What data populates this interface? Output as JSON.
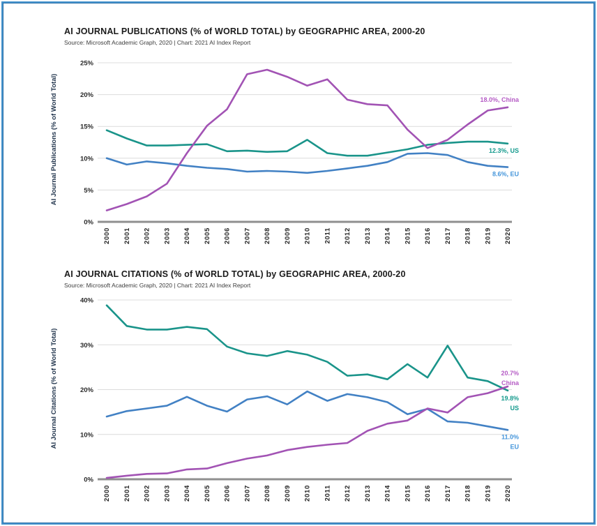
{
  "page": {
    "frame_color": "#4593cd"
  },
  "chart_data": [
    {
      "type": "line",
      "title": "AI JOURNAL PUBLICATIONS (% of WORLD TOTAL) by GEOGRAPHIC AREA, 2000-20",
      "source": "Source: Microsoft Academic Graph, 2020 | Chart: 2021 AI Index Report",
      "xlabel": "",
      "ylabel": "AI Journal Publications (% of World Total)",
      "grid": true,
      "legend_position": "end-of-line-labels-right",
      "ylim": [
        0,
        25
      ],
      "ytick_values": [
        0,
        5,
        10,
        15,
        20,
        25
      ],
      "x": [
        2000,
        2001,
        2002,
        2003,
        2004,
        2005,
        2006,
        2007,
        2008,
        2009,
        2010,
        2011,
        2012,
        2013,
        2014,
        2015,
        2016,
        2017,
        2018,
        2019,
        2020
      ],
      "series": [
        {
          "name": "China",
          "color": "#a253b4",
          "label_color": "#b55cc5",
          "end_label_lines": [
            "18.0%, China"
          ],
          "values": [
            1.8,
            2.8,
            4.0,
            6.0,
            10.8,
            15.1,
            17.7,
            23.2,
            23.9,
            22.8,
            21.4,
            22.4,
            19.2,
            18.5,
            18.3,
            14.5,
            11.6,
            12.9,
            15.3,
            17.5,
            18.0
          ]
        },
        {
          "name": "US",
          "color": "#1a948a",
          "label_color": "#149a8d",
          "end_label_lines": [
            "12.3%, US"
          ],
          "values": [
            14.4,
            13.1,
            12.0,
            12.0,
            12.1,
            12.2,
            11.1,
            11.2,
            11.0,
            11.1,
            12.9,
            10.8,
            10.4,
            10.4,
            10.9,
            11.4,
            12.1,
            12.4,
            12.6,
            12.6,
            12.3
          ]
        },
        {
          "name": "EU",
          "color": "#4281c4",
          "label_color": "#4596db",
          "end_label_lines": [
            "8.6%, EU"
          ],
          "values": [
            10.0,
            9.0,
            9.5,
            9.2,
            8.8,
            8.5,
            8.3,
            7.9,
            8.0,
            7.9,
            7.7,
            8.0,
            8.4,
            8.8,
            9.4,
            10.7,
            10.8,
            10.5,
            9.4,
            8.8,
            8.6
          ]
        }
      ]
    },
    {
      "type": "line",
      "title": "AI JOURNAL CITATIONS (% of WORLD TOTAL) by GEOGRAPHIC AREA, 2000-20",
      "source": "Source: Microsoft Academic Graph, 2020 | Chart: 2021 AI Index Report",
      "xlabel": "",
      "ylabel": "AI Journal Citations (% of World Total)",
      "grid": true,
      "legend_position": "end-of-line-labels-right",
      "ylim": [
        0,
        40
      ],
      "ytick_values": [
        0,
        10,
        20,
        30,
        40
      ],
      "x": [
        2000,
        2001,
        2002,
        2003,
        2004,
        2005,
        2006,
        2007,
        2008,
        2009,
        2010,
        2011,
        2012,
        2013,
        2014,
        2015,
        2016,
        2017,
        2018,
        2019,
        2020
      ],
      "series": [
        {
          "name": "China",
          "color": "#a253b4",
          "label_color": "#b55cc5",
          "end_label_lines": [
            "20.7%",
            "China"
          ],
          "values": [
            0.3,
            0.8,
            1.2,
            1.3,
            2.2,
            2.4,
            3.6,
            4.6,
            5.3,
            6.5,
            7.2,
            7.7,
            8.1,
            10.8,
            12.4,
            13.1,
            15.8,
            14.9,
            18.3,
            19.2,
            20.7
          ]
        },
        {
          "name": "US",
          "color": "#1a948a",
          "label_color": "#149a8d",
          "end_label_lines": [
            "19.8%",
            "US"
          ],
          "values": [
            38.8,
            34.2,
            33.4,
            33.4,
            34.0,
            33.5,
            29.6,
            28.1,
            27.5,
            28.6,
            27.8,
            26.2,
            23.1,
            23.4,
            22.3,
            25.7,
            22.7,
            29.8,
            22.7,
            21.9,
            19.8
          ]
        },
        {
          "name": "EU",
          "color": "#4281c4",
          "label_color": "#4596db",
          "end_label_lines": [
            "11.0%",
            "EU"
          ],
          "values": [
            14.0,
            15.2,
            15.8,
            16.4,
            18.4,
            16.4,
            15.1,
            17.8,
            18.5,
            16.7,
            19.6,
            17.5,
            19.0,
            18.3,
            17.2,
            14.5,
            15.7,
            12.9,
            12.6,
            11.8,
            11.0
          ]
        }
      ]
    }
  ]
}
